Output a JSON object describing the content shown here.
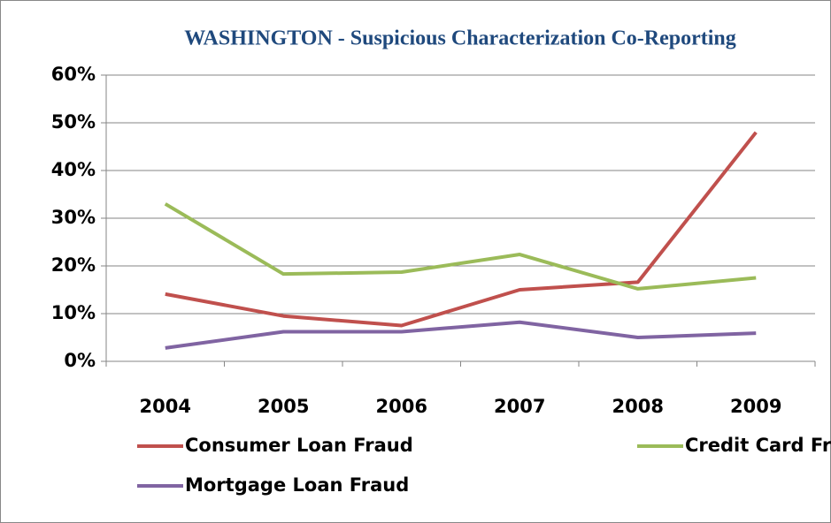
{
  "chart_data": {
    "type": "line",
    "title": "WASHINGTON - Suspicious Characterization Co-Reporting",
    "categories": [
      "2004",
      "2005",
      "2006",
      "2007",
      "2008",
      "2009"
    ],
    "series": [
      {
        "name": "Consumer Loan Fraud",
        "color": "#c0504d",
        "values": [
          14.1,
          9.5,
          7.5,
          15,
          16.6,
          48
        ]
      },
      {
        "name": "Credit Card Fraud",
        "color": "#9bbb59",
        "values": [
          33,
          18.3,
          18.7,
          22.4,
          15.2,
          17.5
        ]
      },
      {
        "name": "Mortgage Loan Fraud",
        "color": "#8064a2",
        "values": [
          2.8,
          6.2,
          6.2,
          8.2,
          5,
          5.9
        ]
      }
    ],
    "ylim": [
      0,
      60
    ],
    "yticks": [
      {
        "value": 0,
        "label": "0%"
      },
      {
        "value": 10,
        "label": "10%"
      },
      {
        "value": 20,
        "label": "20%"
      },
      {
        "value": 30,
        "label": "30%"
      },
      {
        "value": 40,
        "label": "40%"
      },
      {
        "value": 50,
        "label": "50%"
      },
      {
        "value": 60,
        "label": "60%"
      }
    ],
    "grid": true,
    "legend": "bottom"
  }
}
